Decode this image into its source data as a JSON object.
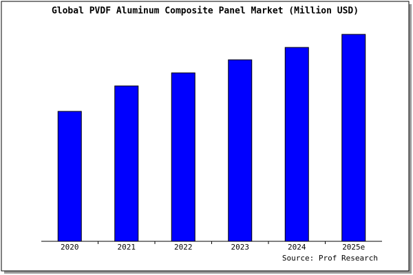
{
  "chart_data": {
    "type": "bar",
    "title": "Global PVDF Aluminum Composite Panel Market (Million USD)",
    "categories": [
      "2020",
      "2021",
      "2022",
      "2023",
      "2024",
      "2025e"
    ],
    "values": [
      189,
      226,
      245,
      264,
      282,
      301
    ],
    "color": "#0000ff",
    "ylim": [
      0,
      306
    ],
    "source": "Source: Prof Research"
  }
}
